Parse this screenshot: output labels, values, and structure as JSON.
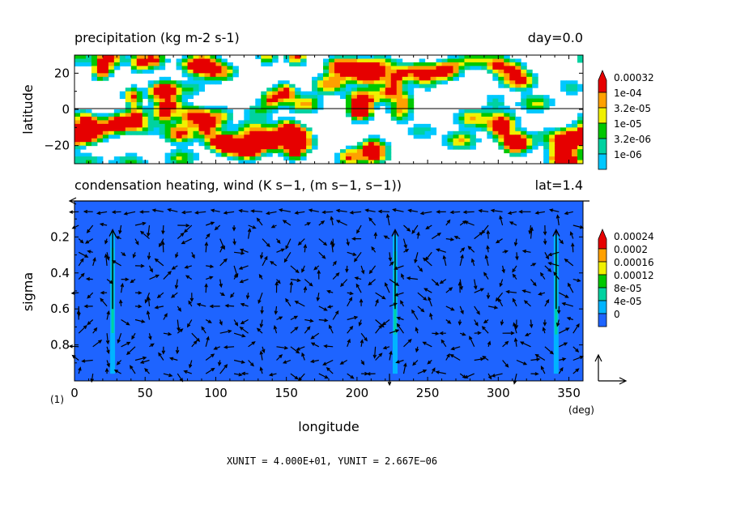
{
  "chart_data": [
    {
      "type": "heatmap",
      "title": "precipitation (kg m-2 s-1)",
      "annotation": "day=0.0",
      "ylabel": "latitude",
      "xlim": [
        0,
        360
      ],
      "ylim": [
        -30,
        30
      ],
      "y_ticks": [
        -20,
        0,
        20
      ],
      "y_tick_labels": [
        "−20",
        "0",
        "20"
      ],
      "levels": [
        1e-06,
        3.2e-06,
        1e-05,
        3.2e-05,
        0.0001,
        0.00032
      ],
      "colorbar_labels": [
        "0.00032",
        "1e-04",
        "3.2e-05",
        "1e-05",
        "3.2e-06",
        "1e-06"
      ],
      "colors": [
        "#00c8ff",
        "#00d2a0",
        "#00c800",
        "#f0f000",
        "#ffa000",
        "#e60000"
      ],
      "reference_line_y": 0
    },
    {
      "type": "heatmap",
      "title": "condensation heating, wind (K s−1, (m s−1, s−1))",
      "annotation": "lat=1.4",
      "xlabel": "longitude",
      "xunit": "(deg)",
      "ylabel": "sigma",
      "xlim": [
        0,
        360
      ],
      "ylim": [
        1.0,
        0.0
      ],
      "x_ticks": [
        0,
        50,
        100,
        150,
        200,
        250,
        300,
        350
      ],
      "x_tick_labels": [
        "0",
        "50",
        "100",
        "150",
        "200",
        "250",
        "300",
        "350"
      ],
      "y_ticks": [
        0.2,
        0.4,
        0.6,
        0.8
      ],
      "y_tick_labels": [
        "0.2",
        "0.4",
        "0.6",
        "0.8"
      ],
      "colorbar_labels": [
        "0.00024",
        "0.0002",
        "0.00016",
        "0.00012",
        "8e-05",
        "4e-05",
        "0"
      ],
      "colors": [
        "#1e64ff",
        "#00b4ff",
        "#00d2a0",
        "#00c800",
        "#f0f000",
        "#ffa000",
        "#e60000"
      ],
      "background_value": 0,
      "heating_columns_lon": [
        27,
        227,
        341
      ],
      "panel_label": "(1)"
    }
  ],
  "footer": "XUNIT = 4.000E+01, YUNIT = 2.667E−06"
}
